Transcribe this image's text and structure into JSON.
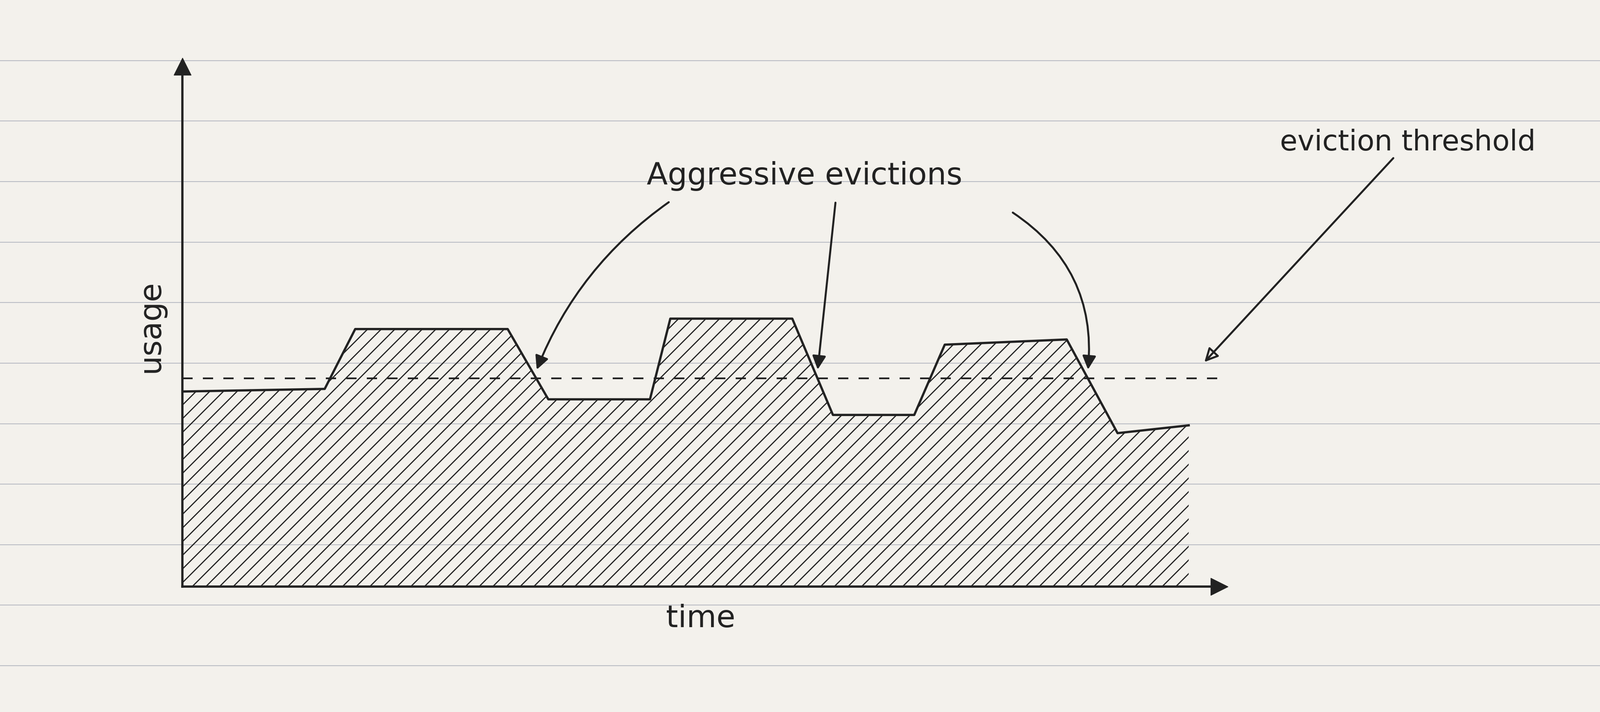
{
  "chart_data": {
    "type": "area",
    "x_label": "time",
    "y_label": "usage",
    "x": [
      0,
      1.4,
      1.7,
      3.2,
      3.6,
      4.6,
      4.8,
      6.0,
      6.4,
      7.2,
      7.5,
      8.7,
      9.2,
      9.9
    ],
    "values": [
      7.5,
      7.6,
      9.9,
      9.9,
      7.2,
      7.2,
      10.3,
      10.3,
      6.6,
      6.6,
      9.3,
      9.5,
      5.9,
      6.2
    ],
    "xlim": [
      0,
      10.2
    ],
    "ylim": [
      0,
      20
    ],
    "xticks": [],
    "yticks": [],
    "tick_labels": false,
    "color": "#222222",
    "threshold": {
      "label": "eviction threshold",
      "value": 8.0
    },
    "annotation": "Aggressive evictions"
  }
}
